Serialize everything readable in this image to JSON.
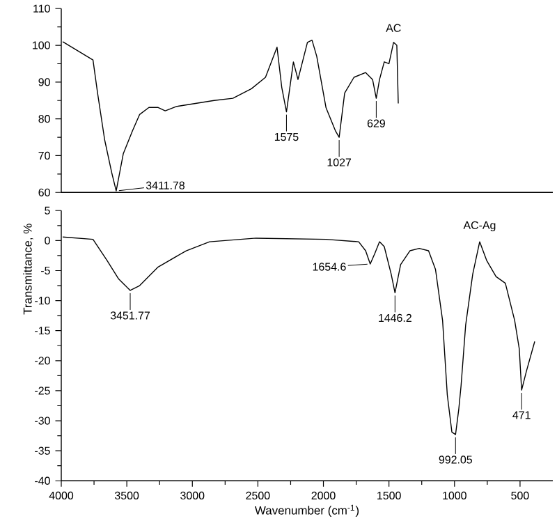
{
  "chart_data": [
    {
      "type": "line",
      "xlim": [
        4000,
        250
      ],
      "xticks": [
        4000,
        3500,
        3000,
        2500,
        2000,
        1500,
        1000,
        500
      ],
      "ylim": [
        60,
        110
      ],
      "yticks": [
        60,
        70,
        80,
        90,
        100,
        110
      ],
      "tick_labels": "y",
      "series": [
        {
          "name": "AC",
          "color": "#000000",
          "x": [
            3989,
            3758,
            3723,
            3669,
            3616,
            3581,
            3527,
            3456,
            3402,
            3331,
            3261,
            3207,
            3118,
            2834,
            2691,
            2549,
            2442,
            2354,
            2318,
            2282,
            2229,
            2194,
            2122,
            2087,
            2051,
            1980,
            1909,
            1880,
            1838,
            1767,
            1678,
            1625,
            1597,
            1572,
            1536,
            1500,
            1465,
            1440,
            1429
          ],
          "values": [
            101,
            96,
            87,
            74.3,
            65.5,
            60.4,
            70.5,
            76.8,
            81.2,
            83.1,
            83.1,
            82.2,
            83.4,
            85,
            85.6,
            88.2,
            91.3,
            99.5,
            88.6,
            81.9,
            95.5,
            90.7,
            100.8,
            101.4,
            97,
            83,
            76.8,
            75,
            87,
            91.3,
            92.6,
            90.7,
            85.6,
            90.7,
            95.5,
            95,
            100.8,
            100,
            84.2
          ]
        }
      ],
      "annotations": [
        {
          "text": "3411.78",
          "x": 3581,
          "y": 60.4
        },
        {
          "text": "1575",
          "x": 2282,
          "y": 81.9
        },
        {
          "text": "1027",
          "x": 1880,
          "y": 75
        },
        {
          "text": "629",
          "x": 1597,
          "y": 85.6
        }
      ]
    },
    {
      "type": "line",
      "xlim": [
        4000,
        250
      ],
      "xticks": [
        4000,
        3500,
        3000,
        2500,
        2000,
        1500,
        1000,
        500
      ],
      "ylim": [
        -40,
        5
      ],
      "yticks": [
        -40,
        -35,
        -30,
        -25,
        -20,
        -15,
        -10,
        -5,
        0,
        5
      ],
      "xlabel": "Wavenumber (cm$^{-1}$)",
      "ylabel": "Transmittance, %",
      "series": [
        {
          "name": "AC-Ag",
          "color": "#000000",
          "x": [
            3989,
            3758,
            3651,
            3562,
            3474,
            3402,
            3261,
            3047,
            2869,
            2514,
            1980,
            1731,
            1678,
            1643,
            1607,
            1572,
            1536,
            1483,
            1454,
            1411,
            1340,
            1269,
            1198,
            1145,
            1091,
            1055,
            1020,
            992,
            967,
            950,
            915,
            861,
            808,
            755,
            683,
            612,
            541,
            506,
            488,
            452,
            388
          ],
          "values": [
            0.6,
            0.2,
            -3.3,
            -6.4,
            -8.3,
            -7.5,
            -4.4,
            -1.7,
            -0.2,
            0.4,
            0.2,
            -0.2,
            -1.7,
            -3.9,
            -2.1,
            -0.2,
            -1,
            -5.6,
            -8.7,
            -4,
            -1.7,
            -1.3,
            -1.7,
            -4.8,
            -13.3,
            -25.7,
            -31.9,
            -32.3,
            -28,
            -24.2,
            -14.1,
            -5.6,
            -0.2,
            -3.3,
            -6,
            -7.1,
            -13.3,
            -18,
            -24.9,
            -21.8,
            -16.8
          ]
        }
      ],
      "annotations": [
        {
          "text": "3451.77",
          "x": 3474,
          "y": -8.3
        },
        {
          "text": "1654.6",
          "x": 1643,
          "y": -3.9
        },
        {
          "text": "1446.2",
          "x": 1454,
          "y": -8.7
        },
        {
          "text": "992.05",
          "x": 992,
          "y": -32.3
        },
        {
          "text": "471",
          "x": 488,
          "y": -24.9
        }
      ]
    }
  ]
}
